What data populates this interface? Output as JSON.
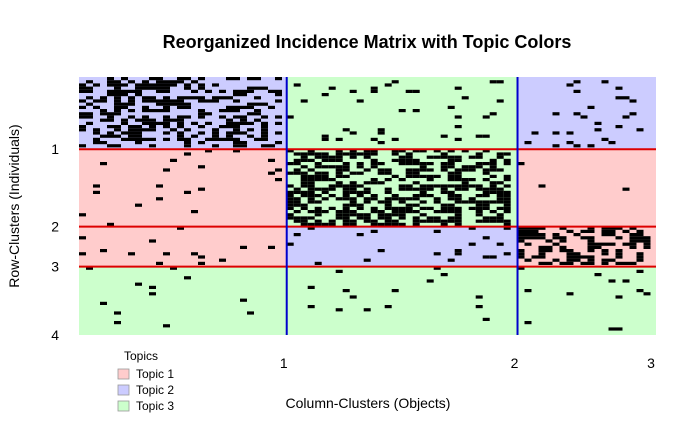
{
  "chart_data": {
    "type": "heatmap",
    "title": "Reorganized Incidence Matrix with Topic Colors",
    "xlabel": "Column-Clusters (Objects)",
    "ylabel": "Row-Clusters (Individuals)",
    "x_ticks": [
      "1",
      "2",
      "3"
    ],
    "y_ticks": [
      "1",
      "2",
      "3",
      "4"
    ],
    "x_boundaries": [
      0,
      1,
      2,
      3
    ],
    "y_boundaries": [
      0,
      1,
      2,
      3,
      4
    ],
    "col_block_widths": [
      0.36,
      0.4,
      0.24
    ],
    "row_block_heights": [
      0.28,
      0.3,
      0.155,
      0.265
    ],
    "blocks": [
      [
        2,
        3,
        2
      ],
      [
        1,
        3,
        1
      ],
      [
        1,
        2,
        1
      ],
      [
        3,
        3,
        3
      ]
    ],
    "block_density": [
      [
        0.45,
        0.04,
        0.05
      ],
      [
        0.03,
        0.55,
        0.02
      ],
      [
        0.03,
        0.04,
        0.5
      ],
      [
        0.02,
        0.02,
        0.02
      ]
    ],
    "legend": {
      "title": "Topics",
      "entries": [
        "Topic 1",
        "Topic 2",
        "Topic 3"
      ],
      "placement": "bottom-left"
    },
    "colors": {
      "topic1": "#ffcccc",
      "topic2": "#ccccff",
      "topic3": "#ccffcc",
      "cell": "#000000",
      "row_separator": "#dd0000",
      "col_separator": "#0000cc"
    }
  }
}
